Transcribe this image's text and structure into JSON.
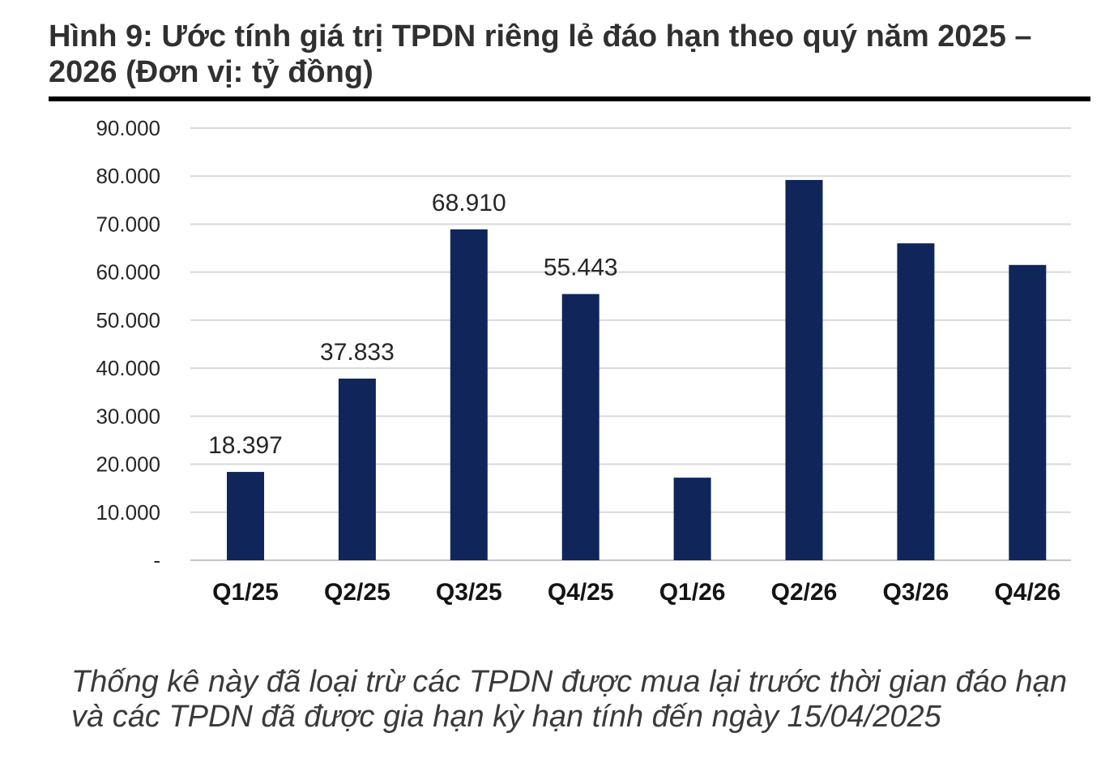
{
  "chart_data": {
    "type": "bar",
    "title": "Hình 9: Ước tính giá trị TPDN riêng lẻ đáo hạn theo quý năm 2025 – 2026 (Đơn vị: tỷ đồng)",
    "categories": [
      "Q1/25",
      "Q2/25",
      "Q3/25",
      "Q4/25",
      "Q1/26",
      "Q2/26",
      "Q3/26",
      "Q4/26"
    ],
    "values": [
      18397,
      37833,
      68910,
      55443,
      17200,
      79200,
      66000,
      61500
    ],
    "data_labels": [
      "18.397",
      "37.833",
      "68.910",
      "55.443",
      null,
      null,
      null,
      null
    ],
    "ylim": [
      0,
      90000
    ],
    "y_ticks": [
      0,
      10000,
      20000,
      30000,
      40000,
      50000,
      60000,
      70000,
      80000,
      90000
    ],
    "y_tick_labels": [
      "-",
      "10.000",
      "20.000",
      "30.000",
      "40.000",
      "50.000",
      "60.000",
      "70.000",
      "80.000",
      "90.000"
    ],
    "grid": true,
    "bar_color": "#10265a",
    "grid_color": "#d9d9d9",
    "axis_color": "#c4c4c4"
  },
  "footnote": {
    "lines": [
      "Thống kê này đã loại trừ các TPDN được mua lại trước thời gian đáo hạn",
      "và các TPDN đã được gia hạn kỳ hạn tính đến ngày 15/04/2025"
    ]
  }
}
